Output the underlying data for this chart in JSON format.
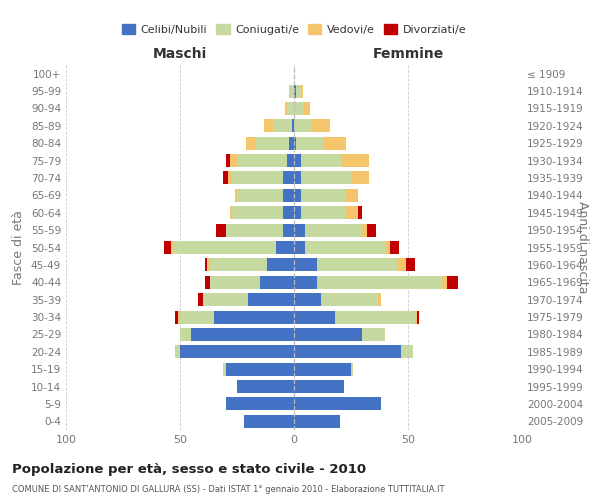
{
  "age_groups": [
    "0-4",
    "5-9",
    "10-14",
    "15-19",
    "20-24",
    "25-29",
    "30-34",
    "35-39",
    "40-44",
    "45-49",
    "50-54",
    "55-59",
    "60-64",
    "65-69",
    "70-74",
    "75-79",
    "80-84",
    "85-89",
    "90-94",
    "95-99",
    "100+"
  ],
  "birth_years": [
    "2005-2009",
    "2000-2004",
    "1995-1999",
    "1990-1994",
    "1985-1989",
    "1980-1984",
    "1975-1979",
    "1970-1974",
    "1965-1969",
    "1960-1964",
    "1955-1959",
    "1950-1954",
    "1945-1949",
    "1940-1944",
    "1935-1939",
    "1930-1934",
    "1925-1929",
    "1920-1924",
    "1915-1919",
    "1910-1914",
    "≤ 1909"
  ],
  "maschi_celibi": [
    22,
    30,
    25,
    30,
    50,
    45,
    35,
    20,
    15,
    12,
    8,
    5,
    5,
    5,
    5,
    3,
    2,
    1,
    0,
    0,
    0
  ],
  "maschi_coniugati": [
    0,
    0,
    0,
    1,
    2,
    5,
    15,
    20,
    22,
    25,
    45,
    25,
    22,
    20,
    22,
    22,
    15,
    8,
    3,
    2,
    0
  ],
  "maschi_vedovi": [
    0,
    0,
    0,
    0,
    0,
    0,
    1,
    0,
    0,
    1,
    1,
    0,
    1,
    1,
    2,
    3,
    4,
    4,
    1,
    0,
    0
  ],
  "maschi_divorziati": [
    0,
    0,
    0,
    0,
    0,
    0,
    1,
    2,
    2,
    1,
    3,
    4,
    0,
    0,
    2,
    2,
    0,
    0,
    0,
    0,
    0
  ],
  "femmine_nubili": [
    20,
    38,
    22,
    25,
    47,
    30,
    18,
    12,
    10,
    10,
    5,
    5,
    3,
    3,
    3,
    3,
    1,
    0,
    0,
    1,
    0
  ],
  "femmine_coniugate": [
    0,
    0,
    0,
    1,
    5,
    10,
    35,
    25,
    55,
    35,
    35,
    25,
    20,
    20,
    22,
    18,
    12,
    8,
    4,
    2,
    0
  ],
  "femmine_vedove": [
    0,
    0,
    0,
    0,
    0,
    0,
    1,
    1,
    2,
    4,
    2,
    2,
    5,
    5,
    8,
    12,
    10,
    8,
    3,
    1,
    0
  ],
  "femmine_divorziate": [
    0,
    0,
    0,
    0,
    0,
    0,
    1,
    0,
    5,
    4,
    4,
    4,
    2,
    0,
    0,
    0,
    0,
    0,
    0,
    0,
    0
  ],
  "col_celibi": "#4472c4",
  "col_coniugati": "#c5d9a0",
  "col_vedovi": "#f5c56b",
  "col_divorziati": "#c00000",
  "xlim": 100,
  "title": "Popolazione per età, sesso e stato civile - 2010",
  "subtitle": "COMUNE DI SANT'ANTONIO DI GALLURA (SS) - Dati ISTAT 1° gennaio 2010 - Elaborazione TUTTITALIA.IT",
  "label_maschi": "Maschi",
  "label_femmine": "Femmine",
  "ylabel_left": "Fasce di età",
  "ylabel_right": "Anni di nascita",
  "legend_labels": [
    "Celibi/Nubili",
    "Coniugati/e",
    "Vedovi/e",
    "Divorziati/e"
  ],
  "bg_color": "#ffffff",
  "grid_color": "#cccccc",
  "tick_color": "#777777"
}
